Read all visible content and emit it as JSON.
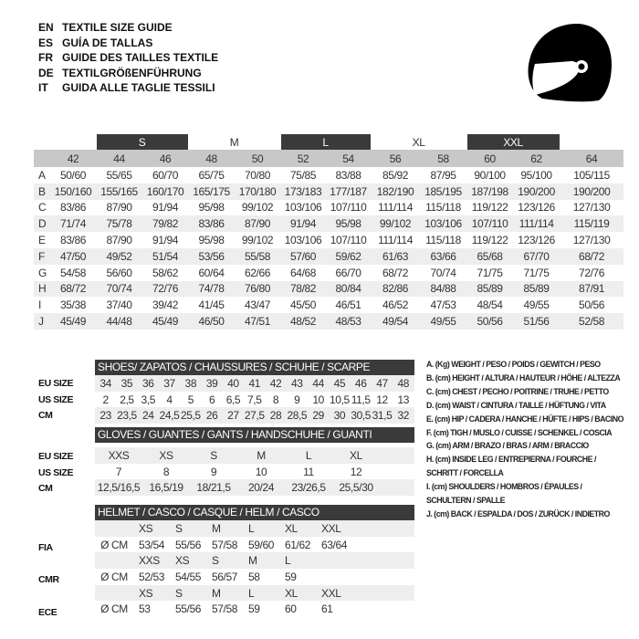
{
  "titles": [
    {
      "lang": "EN",
      "text": "TEXTILE SIZE GUIDE"
    },
    {
      "lang": "ES",
      "text": "GUÍA DE TALLAS"
    },
    {
      "lang": "FR",
      "text": "GUIDE DES TAILLES TEXTILE"
    },
    {
      "lang": "DE",
      "text": "TEXTILGRÖßENFÜHRUNG"
    },
    {
      "lang": "IT",
      "text": "GUIDA ALLE TAGLIE TESSILI"
    }
  ],
  "helmet_icon": "helmet-icon",
  "textile": {
    "bands": [
      "S",
      "M",
      "L",
      "XL",
      "XXL"
    ],
    "sizes": [
      "42",
      "44",
      "46",
      "48",
      "50",
      "52",
      "54",
      "56",
      "58",
      "60",
      "62",
      "64"
    ],
    "rows": [
      {
        "label": "A",
        "values": [
          "50/60",
          "55/65",
          "60/70",
          "65/75",
          "70/80",
          "75/85",
          "83/88",
          "85/92",
          "87/95",
          "90/100",
          "95/100",
          "105/115"
        ]
      },
      {
        "label": "B",
        "values": [
          "150/160",
          "155/165",
          "160/170",
          "165/175",
          "170/180",
          "173/183",
          "177/187",
          "182/190",
          "185/195",
          "187/198",
          "190/200",
          "190/200"
        ]
      },
      {
        "label": "C",
        "values": [
          "83/86",
          "87/90",
          "91/94",
          "95/98",
          "99/102",
          "103/106",
          "107/110",
          "111/114",
          "115/118",
          "119/122",
          "123/126",
          "127/130"
        ]
      },
      {
        "label": "D",
        "values": [
          "71/74",
          "75/78",
          "79/82",
          "83/86",
          "87/90",
          "91/94",
          "95/98",
          "99/102",
          "103/106",
          "107/110",
          "111/114",
          "115/119"
        ]
      },
      {
        "label": "E",
        "values": [
          "83/86",
          "87/90",
          "91/94",
          "95/98",
          "99/102",
          "103/106",
          "107/110",
          "111/114",
          "115/118",
          "119/122",
          "123/126",
          "127/130"
        ]
      },
      {
        "label": "F",
        "values": [
          "47/50",
          "49/52",
          "51/54",
          "53/56",
          "55/58",
          "57/60",
          "59/62",
          "61/63",
          "63/66",
          "65/68",
          "67/70",
          "68/72"
        ]
      },
      {
        "label": "G",
        "values": [
          "54/58",
          "56/60",
          "58/62",
          "60/64",
          "62/66",
          "64/68",
          "66/70",
          "68/72",
          "70/74",
          "71/75",
          "71/75",
          "72/76"
        ]
      },
      {
        "label": "H",
        "values": [
          "68/72",
          "70/74",
          "72/76",
          "74/78",
          "76/80",
          "78/82",
          "80/84",
          "82/86",
          "84/88",
          "85/89",
          "85/89",
          "87/91"
        ]
      },
      {
        "label": "I",
        "values": [
          "35/38",
          "37/40",
          "39/42",
          "41/45",
          "43/47",
          "45/50",
          "46/51",
          "46/52",
          "47/53",
          "48/54",
          "49/55",
          "50/56"
        ]
      },
      {
        "label": "J",
        "values": [
          "45/49",
          "44/48",
          "45/49",
          "46/50",
          "47/51",
          "48/52",
          "48/53",
          "49/54",
          "49/55",
          "50/56",
          "51/56",
          "52/58"
        ]
      }
    ]
  },
  "shoes": {
    "title": "SHOES/ ZAPATOS / CHAUSSURES / SCHUHE / SCARPE",
    "rows": [
      {
        "label": "EU SIZE",
        "values": [
          "34",
          "35",
          "36",
          "37",
          "38",
          "39",
          "40",
          "41",
          "42",
          "43",
          "44",
          "45",
          "46",
          "47",
          "48"
        ]
      },
      {
        "label": "US SIZE",
        "values": [
          "2",
          "2,5",
          "3,5",
          "4",
          "5",
          "6",
          "6,5",
          "7,5",
          "8",
          "9",
          "10",
          "10,5",
          "11,5",
          "12",
          "13"
        ]
      },
      {
        "label": "CM",
        "values": [
          "23",
          "23,5",
          "24",
          "24,5",
          "25,5",
          "26",
          "27",
          "27,5",
          "28",
          "28,5",
          "29",
          "30",
          "30,5",
          "31,5",
          "32"
        ]
      }
    ]
  },
  "gloves": {
    "title": "GLOVES / GUANTES / GANTS / HANDSCHUHE / GUANTI",
    "rows": [
      {
        "label": "EU SIZE",
        "values": [
          "XXS",
          "XS",
          "S",
          "M",
          "L",
          "XL"
        ]
      },
      {
        "label": "US SIZE",
        "values": [
          "7",
          "8",
          "9",
          "10",
          "11",
          "12"
        ]
      },
      {
        "label": "CM",
        "values": [
          "12,5/16,5",
          "16,5/19",
          "18/21,5",
          "20/24",
          "23/26,5",
          "25,5/30"
        ]
      }
    ]
  },
  "helmet": {
    "title": "HELMET / CASCO / CASQUE / HELM / CASCO",
    "unit": "Ø CM",
    "standards": [
      {
        "label": "FIA",
        "sizes": [
          "XS",
          "S",
          "M",
          "L",
          "XL",
          "XXL"
        ],
        "values": [
          "53/54",
          "55/56",
          "57/58",
          "59/60",
          "61/62",
          "63/64"
        ]
      },
      {
        "label": "CMR",
        "sizes": [
          "XXS",
          "XS",
          "S",
          "M",
          "L"
        ],
        "values": [
          "52/53",
          "54/55",
          "56/57",
          "58",
          "59"
        ]
      },
      {
        "label": "ECE",
        "sizes": [
          "XS",
          "S",
          "M",
          "L",
          "XL",
          "XXL"
        ],
        "values": [
          "53",
          "55/56",
          "57/58",
          "59",
          "60",
          "61"
        ]
      }
    ]
  },
  "legend": [
    "A. (Kg) WEIGHT / PESO / POIDS / GEWITCH / PESO",
    "B. (cm) HEIGHT / ALTURA / HAUTEUR / HÖHE / ALTEZZA",
    "C. (cm) CHEST / PECHO / POITRINE / TRUHE / PETTO",
    "D. (cm) WAIST / CINTURA / TAILLE / HÜFTUNG / VITA",
    "E. (cm) HIP / CADERA / HANCHE / HÜFTE / HIPS /  BACINO",
    "F.  (cm) TIGH / MUSLO / CUISSE / SCHENKEL / COSCIA",
    "G. (cm) ARM  / BRAZO / BRAS / ARM / BRACCIO",
    "H. (cm) INSIDE LEG / ENTREPIERNA / FOURCHE /",
    "SCHRITT / FORCELLA",
    "I.  (cm) SHOULDERS / HOMBROS / ÉPAULES /",
    "SCHULTERN / SPALLE",
    "J. (cm) BACK / ESPALDA / DOS / ZURÜCK / INDIETRO"
  ]
}
